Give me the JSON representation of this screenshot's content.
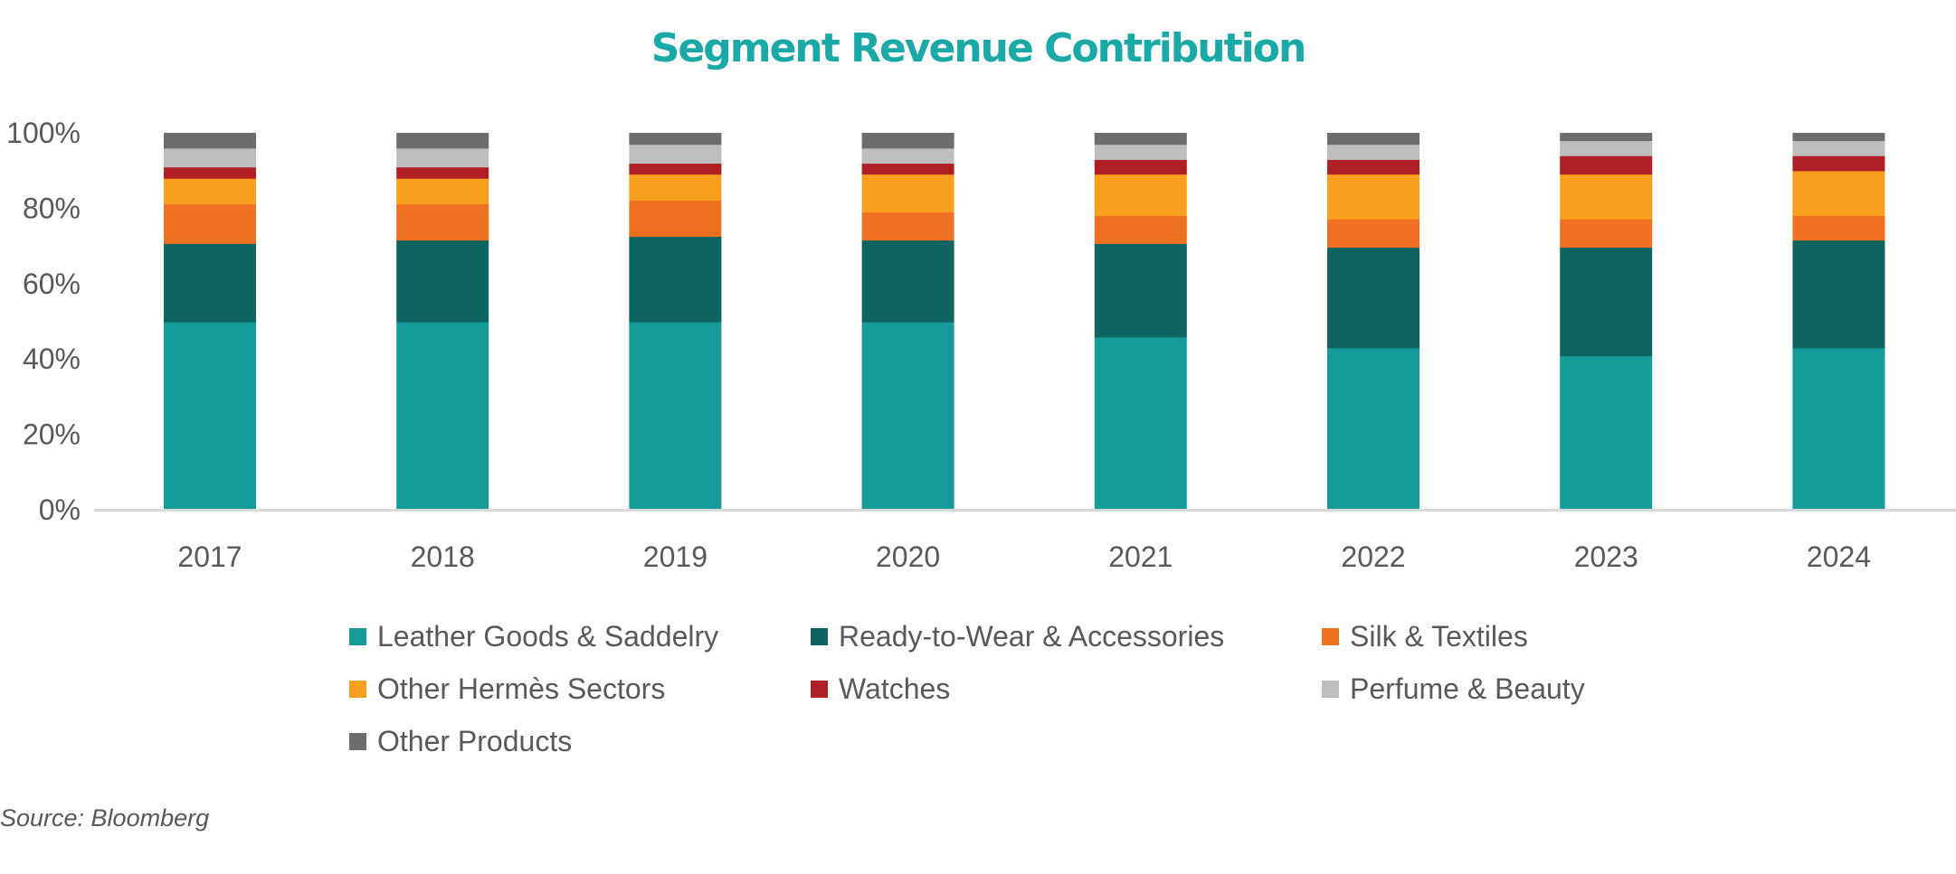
{
  "chart_data": {
    "type": "bar",
    "stacked": true,
    "percent_stacked": true,
    "title": "Segment Revenue Contribution",
    "xlabel": "",
    "ylabel": "",
    "ylim": [
      0,
      100
    ],
    "yticks": [
      "0%",
      "20%",
      "40%",
      "60%",
      "80%",
      "100%"
    ],
    "ytick_values": [
      0,
      20,
      40,
      60,
      80,
      100
    ],
    "grid": false,
    "legend_position": "bottom",
    "categories": [
      "2017",
      "2018",
      "2019",
      "2020",
      "2021",
      "2022",
      "2023",
      "2024"
    ],
    "series": [
      {
        "name": "Leather Goods & Saddelry",
        "color": "#159B9A",
        "values": [
          49.8,
          49.8,
          49.8,
          49.8,
          45.8,
          42.9,
          40.8,
          42.9
        ]
      },
      {
        "name": "Ready-to-Wear & Accessories",
        "color": "#0E6461",
        "values": [
          20.8,
          21.7,
          22.7,
          21.7,
          24.8,
          26.7,
          28.8,
          28.6
        ]
      },
      {
        "name": "Silk & Textiles",
        "color": "#F07022",
        "values": [
          10.5,
          9.6,
          9.6,
          7.5,
          7.4,
          7.5,
          7.5,
          6.5
        ]
      },
      {
        "name": "Other Hermès Sectors",
        "color": "#F99F1E",
        "values": [
          6.8,
          6.8,
          6.9,
          10.0,
          11.0,
          11.9,
          11.9,
          11.9
        ]
      },
      {
        "name": "Watches",
        "color": "#B01F24",
        "values": [
          3.0,
          3.0,
          2.9,
          2.9,
          3.9,
          3.9,
          4.9,
          4.0
        ]
      },
      {
        "name": "Perfume & Beauty",
        "color": "#BFBEBE",
        "values": [
          5.0,
          5.0,
          5.0,
          4.0,
          4.0,
          4.0,
          4.0,
          4.0
        ]
      },
      {
        "name": "Other Products",
        "color": "#6D6D6D",
        "values": [
          4.1,
          4.1,
          3.1,
          4.1,
          3.1,
          3.1,
          2.1,
          2.1
        ]
      }
    ],
    "source": "Source: Bloomberg"
  }
}
